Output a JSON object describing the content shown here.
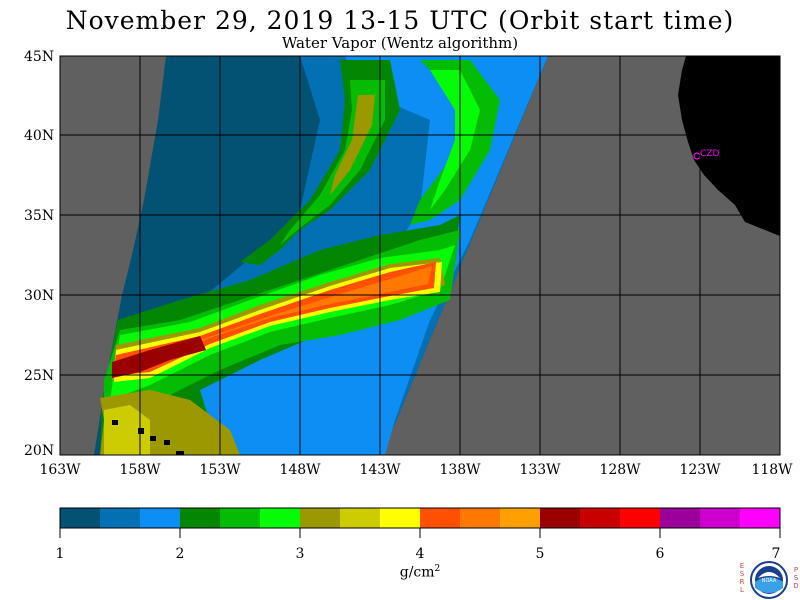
{
  "title": "November 29, 2019  13-15 UTC  (Orbit start time)",
  "subtitle": "Water Vapor (Wentz algorithm)",
  "latitude_labels": [
    "45N",
    "40N",
    "35N",
    "30N",
    "25N",
    "20N"
  ],
  "longitude_labels": [
    "163W",
    "158W",
    "153W",
    "148W",
    "143W",
    "138W",
    "133W",
    "128W",
    "123W",
    "118W"
  ],
  "station_label": "CZD",
  "colorbar": {
    "tick_labels": [
      "1",
      "2",
      "3",
      "4",
      "5",
      "6",
      "7"
    ],
    "units_base": "g/cm",
    "units_exponent": "2",
    "colors": [
      "#035274",
      "#0470b4",
      "#0c8ef4",
      "#038703",
      "#05bc05",
      "#06fb06",
      "#9c9800",
      "#cdcc00",
      "#ffff00",
      "#ff5000",
      "#ff7800",
      "#ff9f00",
      "#9b0000",
      "#c90000",
      "#ff0000",
      "#9c009a",
      "#cc00cc",
      "#ff00ff"
    ]
  },
  "logo": {
    "left_letters": "E S R L",
    "right_letters": "P S D",
    "center_text": "NOAA"
  }
}
